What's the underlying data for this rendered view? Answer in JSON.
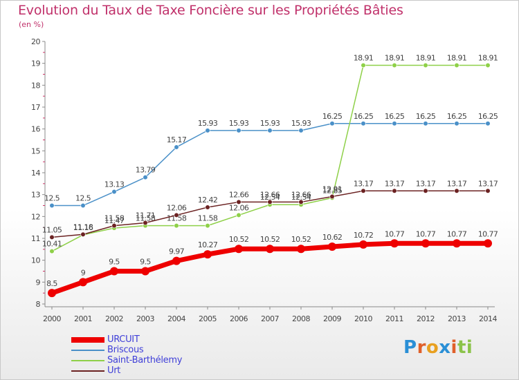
{
  "colors": {
    "title": "#c0306a",
    "axis": "#888888",
    "label": "#444444",
    "legend_text": "#3f3fd8"
  },
  "chart_data": {
    "type": "line",
    "title": "Evolution du Taux de Taxe Foncière sur les Propriétés Bâties",
    "subtitle": "(en %)",
    "xlabel": "",
    "ylabel": "",
    "x": [
      "2000",
      "2001",
      "2002",
      "2003",
      "2004",
      "2005",
      "2006",
      "2007",
      "2008",
      "2009",
      "2010",
      "2011",
      "2012",
      "2013",
      "2014"
    ],
    "ylim": [
      8,
      20
    ],
    "yticks": [
      8,
      9,
      10,
      11,
      12,
      13,
      14,
      15,
      16,
      17,
      18,
      19,
      20
    ],
    "grid": false,
    "legend": "bottom-left",
    "series": [
      {
        "name": "Briscous",
        "color": "#4a90c8",
        "values": [
          12.5,
          12.5,
          13.13,
          13.79,
          15.17,
          15.93,
          15.93,
          15.93,
          15.93,
          16.25,
          16.25,
          16.25,
          16.25,
          16.25,
          16.25
        ],
        "labels": [
          "12.5",
          "12.5",
          "13.13",
          "13.79",
          "15.17",
          "15.93",
          "15.93",
          "15.93",
          "15.93",
          "16.25",
          "16.25",
          "16.25",
          "16.25",
          "16.25",
          "16.25"
        ]
      },
      {
        "name": "Saint-Barthélemy",
        "color": "#8ed048",
        "values": [
          10.41,
          11.16,
          11.47,
          11.58,
          11.58,
          11.58,
          12.06,
          12.54,
          12.54,
          12.85,
          18.91,
          18.91,
          18.91,
          18.91,
          18.91
        ],
        "labels": [
          "10.41",
          "11.16",
          "11.47",
          "11.58",
          "11.58",
          "11.58",
          "12.06",
          "12.54",
          "12.54",
          "12.85",
          "18.91",
          "18.91",
          "18.91",
          "18.91",
          "18.91"
        ]
      },
      {
        "name": "Urt",
        "color": "#6b2222",
        "values": [
          11.05,
          11.18,
          11.58,
          11.71,
          12.06,
          12.42,
          12.66,
          12.66,
          12.66,
          12.91,
          13.17,
          13.17,
          13.17,
          13.17,
          13.17
        ],
        "labels": [
          "11.05",
          "11.18",
          "11.58",
          "11.71",
          "12.06",
          "12.42",
          "12.66",
          "12.66",
          "12.66",
          "12.91",
          "13.17",
          "13.17",
          "13.17",
          "13.17",
          "13.17"
        ]
      },
      {
        "name": "URCUIT",
        "color": "#ee0000",
        "values": [
          8.5,
          9,
          9.5,
          9.5,
          9.97,
          10.27,
          10.52,
          10.52,
          10.52,
          10.62,
          10.72,
          10.77,
          10.77,
          10.77,
          10.77
        ],
        "labels": [
          "8.5",
          "9",
          "9.5",
          "9.5",
          "9.97",
          "10.27",
          "10.52",
          "10.52",
          "10.52",
          "10.62",
          "10.72",
          "10.77",
          "10.77",
          "10.77",
          "10.77"
        ]
      }
    ]
  },
  "legend": {
    "items": [
      {
        "name": "URCUIT",
        "color": "#ee0000",
        "thick": true
      },
      {
        "name": "Briscous",
        "color": "#4a90c8",
        "thick": false
      },
      {
        "name": "Saint-Barthélemy",
        "color": "#8ed048",
        "thick": false
      },
      {
        "name": "Urt",
        "color": "#6b2222",
        "thick": false
      }
    ]
  },
  "logo": {
    "letters": [
      "P",
      "r",
      "o",
      "x",
      "i",
      "t",
      "i"
    ],
    "colors": [
      "#2a8fd6",
      "#e0602a",
      "#e8a020",
      "#2a8fd6",
      "#e0602a",
      "#8bc34a",
      "#8bc34a"
    ]
  }
}
